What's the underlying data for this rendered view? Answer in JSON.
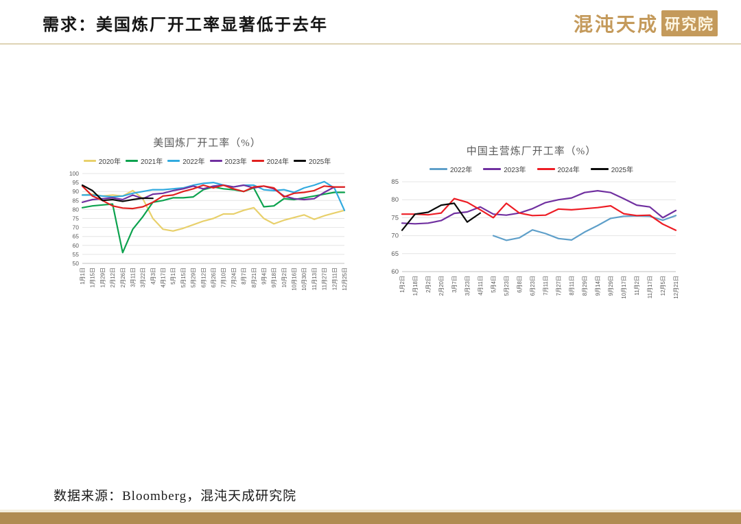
{
  "header": {
    "title": "需求：美国炼厂开工率显著低于去年",
    "logo_script": "混沌天成",
    "logo_block": "研究院"
  },
  "footer": {
    "source": "数据来源：Bloomberg，混沌天成研究院"
  },
  "colors": {
    "accent_gold": "#B08C52",
    "header_rule": "#DED3B4",
    "gridline": "#E4E4E4",
    "axis_line": "#BFBFBF",
    "axis_text": "#595959"
  },
  "chart_data": [
    {
      "type": "line",
      "title": "美国炼厂开工率（%）",
      "legend_position": "top",
      "grid": "horizontal",
      "ylim": [
        50,
        100
      ],
      "ytick_step": 5,
      "categories": [
        "1月1日",
        "1月15日",
        "1月29日",
        "2月12日",
        "2月26日",
        "3月11日",
        "3月22日",
        "4月3日",
        "4月17日",
        "5月1日",
        "5月15日",
        "5月29日",
        "6月12日",
        "6月26日",
        "7月10日",
        "7月24日",
        "8月7日",
        "8月21日",
        "9月4日",
        "9月18日",
        "10月2日",
        "10月16日",
        "10月30日",
        "11月13日",
        "11月27日",
        "12月11日",
        "12月25日"
      ],
      "series": [
        {
          "name": "2020年",
          "color": "#E8D06B",
          "values": [
            88,
            88.5,
            87.5,
            88,
            87.5,
            90.5,
            86,
            75,
            69,
            68,
            69.5,
            71.5,
            73.5,
            75,
            77.5,
            77.5,
            79.5,
            81,
            75,
            72,
            74,
            75.5,
            77,
            74.5,
            76.5,
            78,
            79.5
          ]
        },
        {
          "name": "2021年",
          "color": "#0CA24E",
          "values": [
            81,
            82,
            82.5,
            83,
            56,
            69,
            76,
            84,
            85,
            86.5,
            86.5,
            87,
            91,
            92.5,
            91.5,
            91,
            90,
            92,
            81.5,
            82,
            86,
            85.5,
            86.5,
            87.5,
            88.5,
            89.5,
            89.5
          ]
        },
        {
          "name": "2022年",
          "color": "#31AADF",
          "values": [
            88,
            88,
            87.5,
            87,
            87.5,
            89,
            90,
            91,
            91,
            91.5,
            92,
            93.5,
            94.5,
            95,
            93.5,
            92.5,
            93.5,
            93.5,
            91,
            90.5,
            91,
            89.5,
            92,
            93.5,
            95.5,
            92,
            79.5
          ]
        },
        {
          "name": "2023年",
          "color": "#7030A0",
          "values": [
            84,
            85.5,
            86,
            86.5,
            85.5,
            88,
            86,
            88.5,
            89,
            90.5,
            91.5,
            93,
            91.5,
            93,
            93.5,
            92.5,
            93.5,
            92,
            93,
            91.5,
            87.5,
            86,
            85.5,
            86,
            89.5,
            92.5,
            92.5
          ]
        },
        {
          "name": "2024年",
          "color": "#E0201E",
          "values": [
            93,
            87.5,
            85,
            82,
            80.8,
            80.5,
            81.5,
            84,
            87.5,
            88,
            90,
            91.5,
            93.5,
            92,
            93.5,
            91.5,
            90,
            92.5,
            93,
            92,
            87,
            89,
            89.5,
            90.5,
            93,
            92.5,
            92.5
          ]
        },
        {
          "name": "2025年",
          "color": "#0A0A0A",
          "values": [
            93.5,
            90.5,
            85,
            85.5,
            84.5,
            85.5,
            86.3,
            86.2,
            null,
            null,
            null,
            null,
            null,
            null,
            null,
            null,
            null,
            null,
            null,
            null,
            null,
            null,
            null,
            null,
            null,
            null,
            null
          ]
        }
      ]
    },
    {
      "type": "line",
      "title": "中国主营炼厂开工率（%）",
      "legend_position": "top",
      "grid": "horizontal",
      "ylim": [
        60,
        85
      ],
      "ytick_step": 5,
      "categories": [
        "1月2日",
        "1月18日",
        "2月2日",
        "2月20日",
        "3月7日",
        "3月23日",
        "4月11日",
        "5月4日",
        "5月23日",
        "6月8日",
        "6月23日",
        "7月11日",
        "7月27日",
        "8月11日",
        "8月29日",
        "9月14日",
        "9月29日",
        "10月17日",
        "11月2日",
        "11月17日",
        "12月5日",
        "12月21日"
      ],
      "series": [
        {
          "name": "2022年",
          "color": "#5E9FC9",
          "values": [
            null,
            null,
            null,
            null,
            null,
            null,
            null,
            70,
            68.7,
            69.4,
            71.6,
            70.6,
            69.2,
            68.8,
            71,
            72.8,
            74.8,
            75.4,
            75.5,
            75.4,
            74.3,
            75.6
          ]
        },
        {
          "name": "2023年",
          "color": "#7030A0",
          "values": [
            73.5,
            73.3,
            73.5,
            74.2,
            76.2,
            76.6,
            78,
            76,
            75.7,
            76.3,
            77.5,
            79.2,
            80,
            80.5,
            82,
            82.5,
            82,
            80.3,
            78.5,
            78,
            75,
            77
          ]
        },
        {
          "name": "2024年",
          "color": "#ED1C24",
          "values": [
            76,
            76,
            75.8,
            76.3,
            80.3,
            79.3,
            77.2,
            75,
            79,
            76.3,
            75.6,
            75.7,
            77.4,
            77.2,
            77.5,
            77.8,
            78.3,
            76.1,
            75.6,
            75.7,
            73.2,
            71.5
          ]
        },
        {
          "name": "2025年",
          "color": "#0A0A0A",
          "values": [
            71.5,
            76,
            76.5,
            78.5,
            79,
            73.8,
            76.3,
            null,
            null,
            null,
            null,
            null,
            null,
            null,
            null,
            null,
            null,
            null,
            null,
            null,
            null,
            null
          ]
        }
      ]
    }
  ]
}
